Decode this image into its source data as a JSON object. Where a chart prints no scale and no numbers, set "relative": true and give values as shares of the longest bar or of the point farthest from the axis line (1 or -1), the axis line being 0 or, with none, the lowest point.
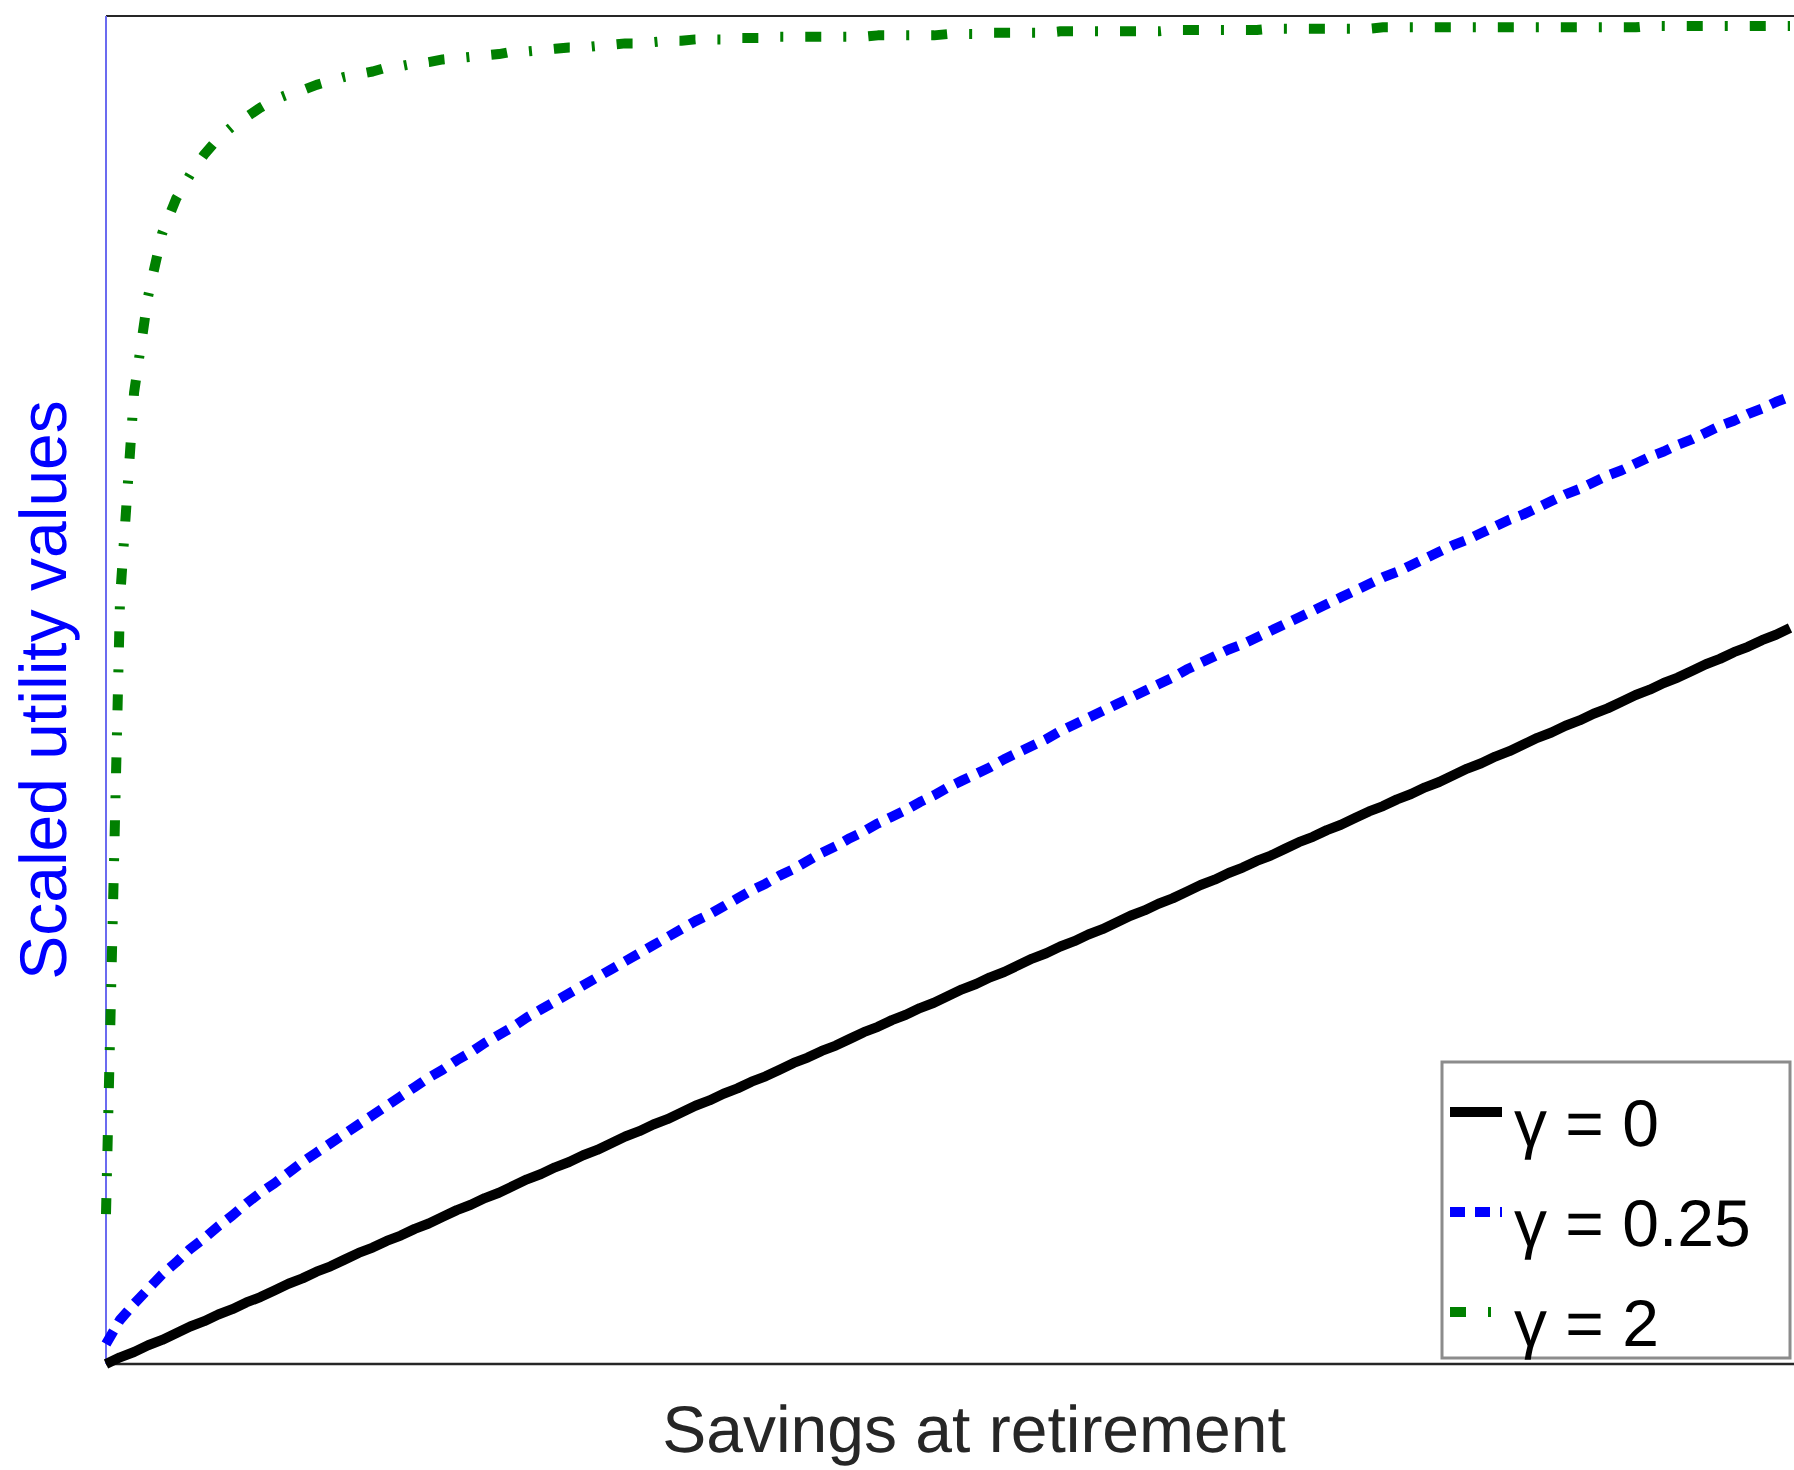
{
  "chart_data": {
    "type": "line",
    "xlabel": "Savings at retirement",
    "ylabel": "Scaled utility values",
    "relative": true,
    "legend": "bottom right",
    "categories": [
      null,
      null,
      null,
      null,
      null,
      null,
      null,
      null,
      null,
      null,
      null,
      null,
      null,
      null,
      null,
      null,
      null,
      null,
      null,
      null,
      null,
      null,
      null,
      null,
      null,
      null,
      null,
      null,
      null,
      null,
      null,
      null,
      null,
      null,
      null,
      null,
      null,
      null,
      null,
      null,
      null,
      null,
      null,
      null,
      null,
      null,
      null,
      null,
      null,
      null,
      null,
      null,
      null,
      null,
      null,
      null,
      null,
      null,
      null,
      null,
      null,
      null,
      null,
      null,
      null,
      null,
      null,
      null,
      null,
      null,
      null,
      null,
      null,
      null,
      null,
      null,
      null,
      null,
      null,
      null,
      null,
      null,
      null,
      null,
      null,
      null,
      null,
      null,
      null,
      null,
      null,
      null,
      null,
      null,
      null,
      null,
      null,
      null,
      null,
      null,
      null,
      null,
      null,
      null,
      null,
      null,
      null,
      null,
      null,
      null,
      null,
      null,
      null,
      null,
      null,
      null,
      null,
      null,
      null,
      null,
      null
    ],
    "series": [
      {
        "name": "γ = 0",
        "color": "#000000",
        "line_style": "solid",
        "values": [
          0,
          0.005,
          0.009,
          0.014,
          0.018,
          0.023,
          0.028,
          0.032,
          0.037,
          0.041,
          0.046,
          0.05,
          0.055,
          0.06,
          0.064,
          0.069,
          0.073,
          0.078,
          0.083,
          0.087,
          0.092,
          0.096,
          0.101,
          0.105,
          0.11,
          0.115,
          0.119,
          0.124,
          0.128,
          0.133,
          0.138,
          0.142,
          0.147,
          0.151,
          0.156,
          0.16,
          0.165,
          0.17,
          0.174,
          0.179,
          0.183,
          0.188,
          0.193,
          0.197,
          0.202,
          0.206,
          0.211,
          0.215,
          0.22,
          0.225,
          0.229,
          0.234,
          0.238,
          0.243,
          0.248,
          0.252,
          0.257,
          0.261,
          0.266,
          0.27,
          0.275,
          0.28,
          0.284,
          0.289,
          0.293,
          0.298,
          0.303,
          0.307,
          0.312,
          0.316,
          0.321,
          0.325,
          0.33,
          0.335,
          0.339,
          0.344,
          0.348,
          0.353,
          0.358,
          0.362,
          0.367,
          0.371,
          0.376,
          0.38,
          0.385,
          0.39,
          0.394,
          0.399,
          0.403,
          0.408,
          0.413,
          0.417,
          0.422,
          0.426,
          0.431,
          0.435,
          0.44,
          0.445,
          0.449,
          0.454,
          0.458,
          0.463,
          0.468,
          0.472,
          0.477,
          0.481,
          0.486,
          0.49,
          0.495,
          0.5,
          0.504,
          0.509,
          0.513,
          0.518,
          0.523,
          0.527,
          0.532,
          0.536,
          0.541,
          0.545,
          0.55
        ]
      },
      {
        "name": "γ = 0.25",
        "color": "#0000ff",
        "line_style": "dotted",
        "values": [
          0.015,
          0.033,
          0.045,
          0.056,
          0.067,
          0.076,
          0.086,
          0.094,
          0.103,
          0.111,
          0.12,
          0.128,
          0.135,
          0.143,
          0.151,
          0.158,
          0.165,
          0.172,
          0.179,
          0.186,
          0.193,
          0.2,
          0.207,
          0.214,
          0.22,
          0.227,
          0.233,
          0.24,
          0.246,
          0.252,
          0.259,
          0.265,
          0.271,
          0.277,
          0.283,
          0.289,
          0.295,
          0.301,
          0.307,
          0.313,
          0.319,
          0.325,
          0.331,
          0.336,
          0.342,
          0.348,
          0.354,
          0.359,
          0.365,
          0.37,
          0.376,
          0.382,
          0.387,
          0.393,
          0.398,
          0.404,
          0.409,
          0.414,
          0.42,
          0.425,
          0.431,
          0.436,
          0.441,
          0.446,
          0.452,
          0.457,
          0.462,
          0.467,
          0.473,
          0.478,
          0.483,
          0.488,
          0.493,
          0.498,
          0.503,
          0.508,
          0.513,
          0.519,
          0.524,
          0.529,
          0.534,
          0.538,
          0.543,
          0.548,
          0.553,
          0.558,
          0.563,
          0.568,
          0.573,
          0.578,
          0.583,
          0.588,
          0.592,
          0.597,
          0.602,
          0.607,
          0.612,
          0.616,
          0.621,
          0.626,
          0.631,
          0.635,
          0.64,
          0.645,
          0.65,
          0.654,
          0.659,
          0.664,
          0.668,
          0.673,
          0.678,
          0.682,
          0.687,
          0.691,
          0.696,
          0.701,
          0.705,
          0.71,
          0.714,
          0.719,
          0.723
        ]
      },
      {
        "name": "γ = 2",
        "color": "#008000",
        "line_style": "dashdot",
        "values": [
          0.112,
          0.572,
          0.726,
          0.798,
          0.845,
          0.871,
          0.889,
          0.904,
          0.916,
          0.925,
          0.932,
          0.939,
          0.945,
          0.949,
          0.952,
          0.956,
          0.959,
          0.962,
          0.964,
          0.966,
          0.969,
          0.97,
          0.972,
          0.973,
          0.975,
          0.976,
          0.977,
          0.978,
          0.979,
          0.981,
          0.981,
          0.982,
          0.983,
          0.984,
          0.984,
          0.985,
          0.986,
          0.987,
          0.987,
          0.988,
          0.989,
          0.989,
          0.99,
          0.99,
          0.99,
          0.991,
          0.991,
          0.991,
          0.992,
          0.992,
          0.992,
          0.992,
          0.992,
          0.992,
          0.992,
          0.993,
          0.993,
          0.993,
          0.993,
          0.993,
          0.994,
          0.994,
          0.994,
          0.995,
          0.995,
          0.995,
          0.995,
          0.995,
          0.996,
          0.996,
          0.996,
          0.996,
          0.996,
          0.996,
          0.996,
          0.996,
          0.997,
          0.997,
          0.997,
          0.997,
          0.997,
          0.997,
          0.997,
          0.998,
          0.998,
          0.998,
          0.998,
          0.998,
          0.998,
          0.998,
          0.998,
          0.999,
          0.999,
          0.999,
          0.999,
          0.999,
          0.999,
          0.999,
          0.999,
          0.999,
          0.999,
          0.999,
          0.999,
          0.999,
          0.999,
          0.999,
          0.999,
          0.999,
          0.999,
          0.999,
          1,
          1,
          1,
          1,
          1,
          1,
          1,
          1,
          1,
          1,
          1
        ]
      }
    ]
  }
}
